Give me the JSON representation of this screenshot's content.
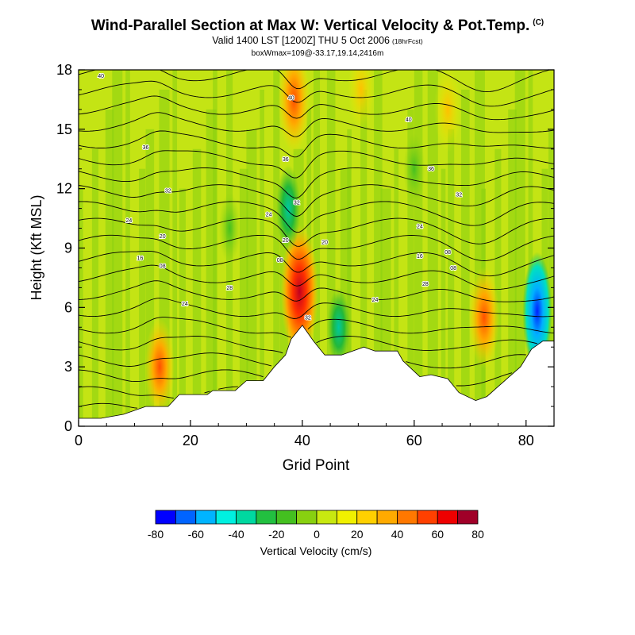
{
  "header": {
    "title": "Wind-Parallel Section at Max W: Vertical Velocity & Pot.Temp.",
    "title_mark": "(C)",
    "subtitle": "Valid 1400 LST [1200Z] THU 5 Oct 2006",
    "subtitle_note": "(18hrFcst)",
    "info": "boxWmax=109@-33.17,19.14,2416m"
  },
  "chart_data": {
    "type": "heatmap",
    "xlabel": "Grid Point",
    "ylabel": "Height (Kft MSL)",
    "xlim": [
      0,
      85
    ],
    "ylim": [
      0,
      18
    ],
    "x_ticks": [
      0,
      20,
      40,
      60,
      80
    ],
    "y_ticks": [
      0,
      3,
      6,
      9,
      12,
      15,
      18
    ],
    "colorbar": {
      "label": "Vertical Velocity (cm/s)",
      "ticks": [
        -80,
        -60,
        -40,
        -20,
        0,
        20,
        40,
        60,
        80
      ],
      "bins": [
        -80,
        -70,
        -60,
        -50,
        -40,
        -30,
        -20,
        -10,
        0,
        10,
        20,
        30,
        40,
        50,
        60,
        70,
        80
      ],
      "colors": [
        "#0000ff",
        "#0064ff",
        "#00b4ff",
        "#00f0e0",
        "#00d8a0",
        "#22c040",
        "#44c020",
        "#88d010",
        "#c8e810",
        "#f0f000",
        "#ffd000",
        "#ffaa00",
        "#ff7800",
        "#ff4000",
        "#ee0000",
        "#a00028"
      ]
    },
    "terrain": [
      [
        0,
        0.4
      ],
      [
        4,
        0.4
      ],
      [
        8,
        0.6
      ],
      [
        12,
        1.0
      ],
      [
        16,
        1.0
      ],
      [
        18,
        1.6
      ],
      [
        23,
        1.6
      ],
      [
        24,
        1.8
      ],
      [
        28,
        1.8
      ],
      [
        30,
        2.3
      ],
      [
        33,
        2.3
      ],
      [
        35,
        3.0
      ],
      [
        37,
        3.6
      ],
      [
        38,
        4.4
      ],
      [
        40,
        5.1
      ],
      [
        42,
        4.3
      ],
      [
        44,
        3.6
      ],
      [
        47,
        3.6
      ],
      [
        49,
        3.8
      ],
      [
        51,
        4.0
      ],
      [
        53,
        3.8
      ],
      [
        57,
        3.8
      ],
      [
        58,
        3.3
      ],
      [
        61,
        2.5
      ],
      [
        63,
        2.6
      ],
      [
        66,
        2.4
      ],
      [
        68,
        1.7
      ],
      [
        71,
        1.3
      ],
      [
        73,
        1.5
      ],
      [
        75,
        2.0
      ],
      [
        77,
        2.5
      ],
      [
        79,
        3.0
      ],
      [
        81,
        3.9
      ],
      [
        83,
        4.3
      ],
      [
        85,
        4.3
      ]
    ],
    "updrafts": [
      {
        "x": 39.5,
        "y": 6.8,
        "value": 80
      },
      {
        "x": 38.5,
        "y": 16.5,
        "value": 50
      },
      {
        "x": 14.5,
        "y": 3.0,
        "value": 40
      },
      {
        "x": 50.5,
        "y": 17.0,
        "value": 20
      },
      {
        "x": 72.5,
        "y": 5.5,
        "value": 45
      },
      {
        "x": 66.0,
        "y": 16.0,
        "value": 25
      }
    ],
    "downdrafts": [
      {
        "x": 82.0,
        "y": 5.8,
        "value": -80
      },
      {
        "x": 37.5,
        "y": 11.0,
        "value": -40
      },
      {
        "x": 46.5,
        "y": 5.0,
        "value": -30
      },
      {
        "x": 27.0,
        "y": 10.0,
        "value": -20
      },
      {
        "x": 60.0,
        "y": 13.0,
        "value": -20
      }
    ],
    "contour_labels": [
      {
        "x": 4,
        "y": 17.7,
        "text": "40"
      },
      {
        "x": 38,
        "y": 16.6,
        "text": "40"
      },
      {
        "x": 59,
        "y": 15.5,
        "text": "40"
      },
      {
        "x": 12,
        "y": 14.1,
        "text": "36"
      },
      {
        "x": 37,
        "y": 13.5,
        "text": "36"
      },
      {
        "x": 63,
        "y": 13.0,
        "text": "36"
      },
      {
        "x": 16,
        "y": 11.9,
        "text": "32"
      },
      {
        "x": 39,
        "y": 11.3,
        "text": "32"
      },
      {
        "x": 68,
        "y": 11.7,
        "text": "32"
      },
      {
        "x": 9,
        "y": 10.4,
        "text": "24"
      },
      {
        "x": 34,
        "y": 10.7,
        "text": "24"
      },
      {
        "x": 61,
        "y": 10.1,
        "text": "24"
      },
      {
        "x": 15,
        "y": 9.6,
        "text": "20"
      },
      {
        "x": 37,
        "y": 9.4,
        "text": "20"
      },
      {
        "x": 44,
        "y": 9.3,
        "text": "20"
      },
      {
        "x": 11,
        "y": 8.5,
        "text": "16"
      },
      {
        "x": 61,
        "y": 8.6,
        "text": "16"
      },
      {
        "x": 15,
        "y": 8.1,
        "text": "08"
      },
      {
        "x": 36,
        "y": 8.4,
        "text": "08"
      },
      {
        "x": 66,
        "y": 8.8,
        "text": "08"
      },
      {
        "x": 67,
        "y": 8.0,
        "text": "08"
      },
      {
        "x": 27,
        "y": 7.0,
        "text": "28"
      },
      {
        "x": 62,
        "y": 7.2,
        "text": "28"
      },
      {
        "x": 19,
        "y": 6.2,
        "text": "24"
      },
      {
        "x": 53,
        "y": 6.4,
        "text": "24"
      },
      {
        "x": 41,
        "y": 5.5,
        "text": "32"
      }
    ]
  }
}
